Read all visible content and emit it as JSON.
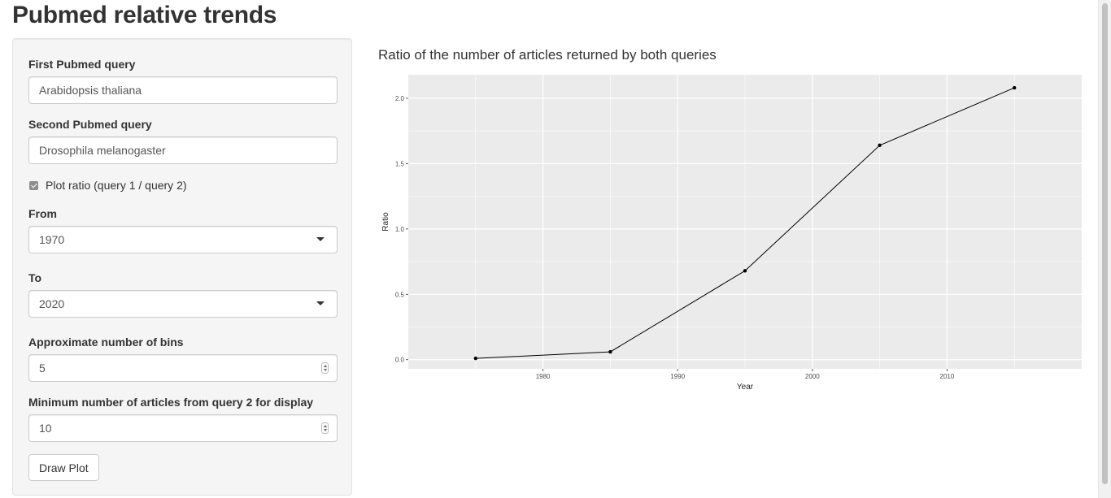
{
  "page": {
    "title": "Pubmed relative trends"
  },
  "sidebar": {
    "query1_label": "First Pubmed query",
    "query1_value": "Arabidopsis thaliana",
    "query2_label": "Second Pubmed query",
    "query2_value": "Drosophila melanogaster",
    "ratio_checkbox_label": "Plot ratio (query 1 / query 2)",
    "ratio_checked": true,
    "from_label": "From",
    "from_value": "1970",
    "to_label": "To",
    "to_value": "2020",
    "bins_label": "Approximate number of bins",
    "bins_value": "5",
    "min_articles_label": "Minimum number of articles from query 2 for display",
    "min_articles_value": "10",
    "draw_button_label": "Draw Plot"
  },
  "plot": {
    "title": "Ratio of the number of articles returned by both queries"
  },
  "chart_data": {
    "type": "line",
    "title": "Ratio of the number of articles returned by both queries",
    "xlabel": "Year",
    "ylabel": "Ratio",
    "x": [
      1975,
      1985,
      1995,
      2005,
      2015
    ],
    "series": [
      {
        "values": [
          0.01,
          0.06,
          0.68,
          1.64,
          2.08
        ]
      }
    ],
    "xlim": [
      1970,
      2020
    ],
    "ylim": [
      -0.07,
      2.18
    ],
    "xticks": [
      1980,
      1990,
      2000,
      2010
    ],
    "xtick_labels": [
      "1980",
      "1990",
      "2000",
      "2010"
    ],
    "yticks": [
      0.0,
      0.5,
      1.0,
      1.5,
      2.0
    ],
    "ytick_labels": [
      "0.0",
      "0.5",
      "1.0",
      "1.5",
      "2.0"
    ],
    "grid": true,
    "colors": {
      "panel_bg": "#ebebeb",
      "grid": "#ffffff",
      "line": "#000000"
    }
  }
}
